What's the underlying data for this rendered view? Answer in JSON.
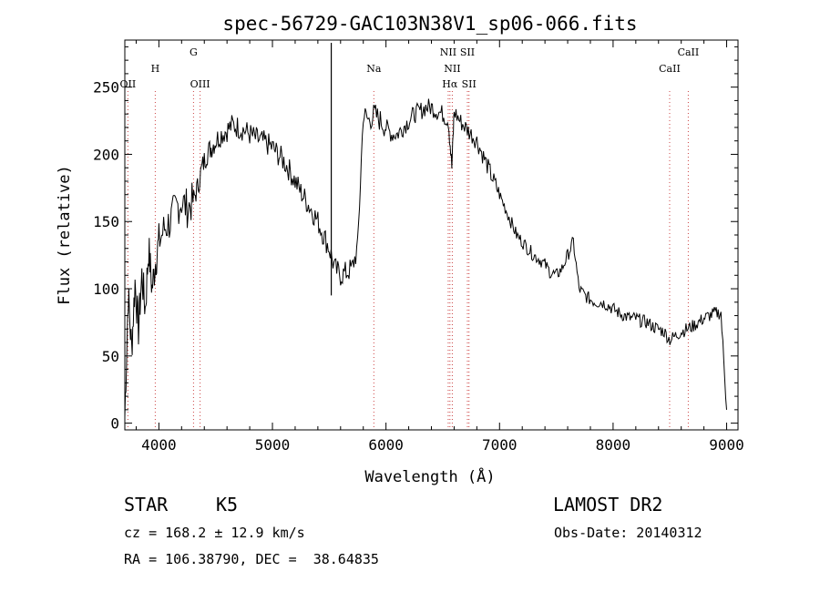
{
  "chart_data": {
    "type": "line",
    "title": "spec-56729-GAC103N38V1_sp06-066.fits",
    "xlabel": "Wavelength (Å)",
    "ylabel": "Flux (relative)",
    "xlim": [
      3700,
      9100
    ],
    "ylim": [
      -5,
      285
    ],
    "xticks": [
      4000,
      5000,
      6000,
      7000,
      8000,
      9000
    ],
    "xtick_labels": [
      "4000",
      "5000",
      "6000",
      "7000",
      "8000",
      "9000"
    ],
    "yticks": [
      0,
      50,
      100,
      150,
      200,
      250
    ],
    "ytick_labels": [
      "0",
      "50",
      "100",
      "150",
      "200",
      "250"
    ],
    "grid": false,
    "legend": "none",
    "series": [
      {
        "x": [
          3700,
          3730,
          3760,
          3790,
          3820,
          3850,
          3880,
          3910,
          3940,
          3970,
          4000,
          4050,
          4100,
          4150,
          4200,
          4250,
          4300,
          4340,
          4380,
          4420,
          4460,
          4500,
          4550,
          4600,
          4650,
          4700,
          4750,
          4800,
          4850,
          4900,
          4950,
          5000,
          5050,
          5100,
          5150,
          5200,
          5250,
          5300,
          5350,
          5400,
          5450,
          5500,
          5550,
          5600,
          5650,
          5700,
          5750,
          5800,
          5850,
          5900,
          5950,
          6000,
          6050,
          6100,
          6150,
          6200,
          6250,
          6300,
          6350,
          6400,
          6450,
          6500,
          6550,
          6580,
          6600,
          6650,
          6700,
          6750,
          6800,
          6850,
          6900,
          6950,
          7000,
          7050,
          7100,
          7150,
          7200,
          7250,
          7300,
          7350,
          7400,
          7450,
          7500,
          7550,
          7600,
          7650,
          7700,
          7750,
          7800,
          7850,
          7900,
          7950,
          8000,
          8050,
          8100,
          8150,
          8200,
          8250,
          8300,
          8350,
          8400,
          8450,
          8500,
          8550,
          8600,
          8650,
          8700,
          8750,
          8800,
          8850,
          8900,
          8950,
          9000
        ],
        "y": [
          5,
          95,
          55,
          105,
          70,
          110,
          85,
          130,
          100,
          120,
          135,
          145,
          150,
          160,
          165,
          160,
          165,
          175,
          190,
          200,
          205,
          210,
          215,
          218,
          222,
          220,
          218,
          215,
          212,
          210,
          208,
          205,
          200,
          195,
          188,
          180,
          172,
          165,
          158,
          150,
          140,
          130,
          115,
          110,
          112,
          115,
          130,
          230,
          225,
          230,
          225,
          220,
          215,
          215,
          220,
          225,
          230,
          232,
          235,
          235,
          232,
          230,
          225,
          190,
          232,
          225,
          220,
          215,
          210,
          200,
          190,
          180,
          170,
          160,
          150,
          140,
          135,
          130,
          125,
          122,
          118,
          112,
          110,
          115,
          125,
          135,
          100,
          95,
          92,
          90,
          90,
          88,
          85,
          82,
          80,
          78,
          78,
          76,
          75,
          72,
          70,
          68,
          62,
          65,
          68,
          70,
          72,
          75,
          78,
          80,
          82,
          82,
          10
        ]
      }
    ],
    "line_labels": [
      {
        "text": "OII",
        "wavelength": 3727,
        "row": 3
      },
      {
        "text": "H",
        "wavelength": 3968,
        "row": 2
      },
      {
        "text": "G",
        "wavelength": 4305,
        "row": 1
      },
      {
        "text": "OIII",
        "wavelength": 4363,
        "row": 3
      },
      {
        "text": "Na",
        "wavelength": 5893,
        "row": 2
      },
      {
        "text": "NII",
        "wavelength": 6548,
        "row": 1
      },
      {
        "text": "SII",
        "wavelength": 6717,
        "row": 1
      },
      {
        "text": "NII",
        "wavelength": 6584,
        "row": 2
      },
      {
        "text": "Hα",
        "wavelength": 6563,
        "row": 3
      },
      {
        "text": "SII",
        "wavelength": 6731,
        "row": 3
      },
      {
        "text": "CaII",
        "wavelength": 8498,
        "row": 2
      },
      {
        "text": "CaII",
        "wavelength": 8662,
        "row": 1
      }
    ],
    "line_markers": [
      3727,
      3968,
      4305,
      4363,
      5893,
      6548,
      6563,
      6584,
      6717,
      6731,
      8498,
      8662
    ]
  },
  "info": {
    "object_class": "STAR",
    "subclass": "K5",
    "survey": "LAMOST DR2",
    "cz_line": "cz = 168.2 ± 12.9 km/s",
    "obs_date": "Obs-Date: 20140312",
    "coords": "RA = 106.38790, DEC =  38.64835"
  }
}
